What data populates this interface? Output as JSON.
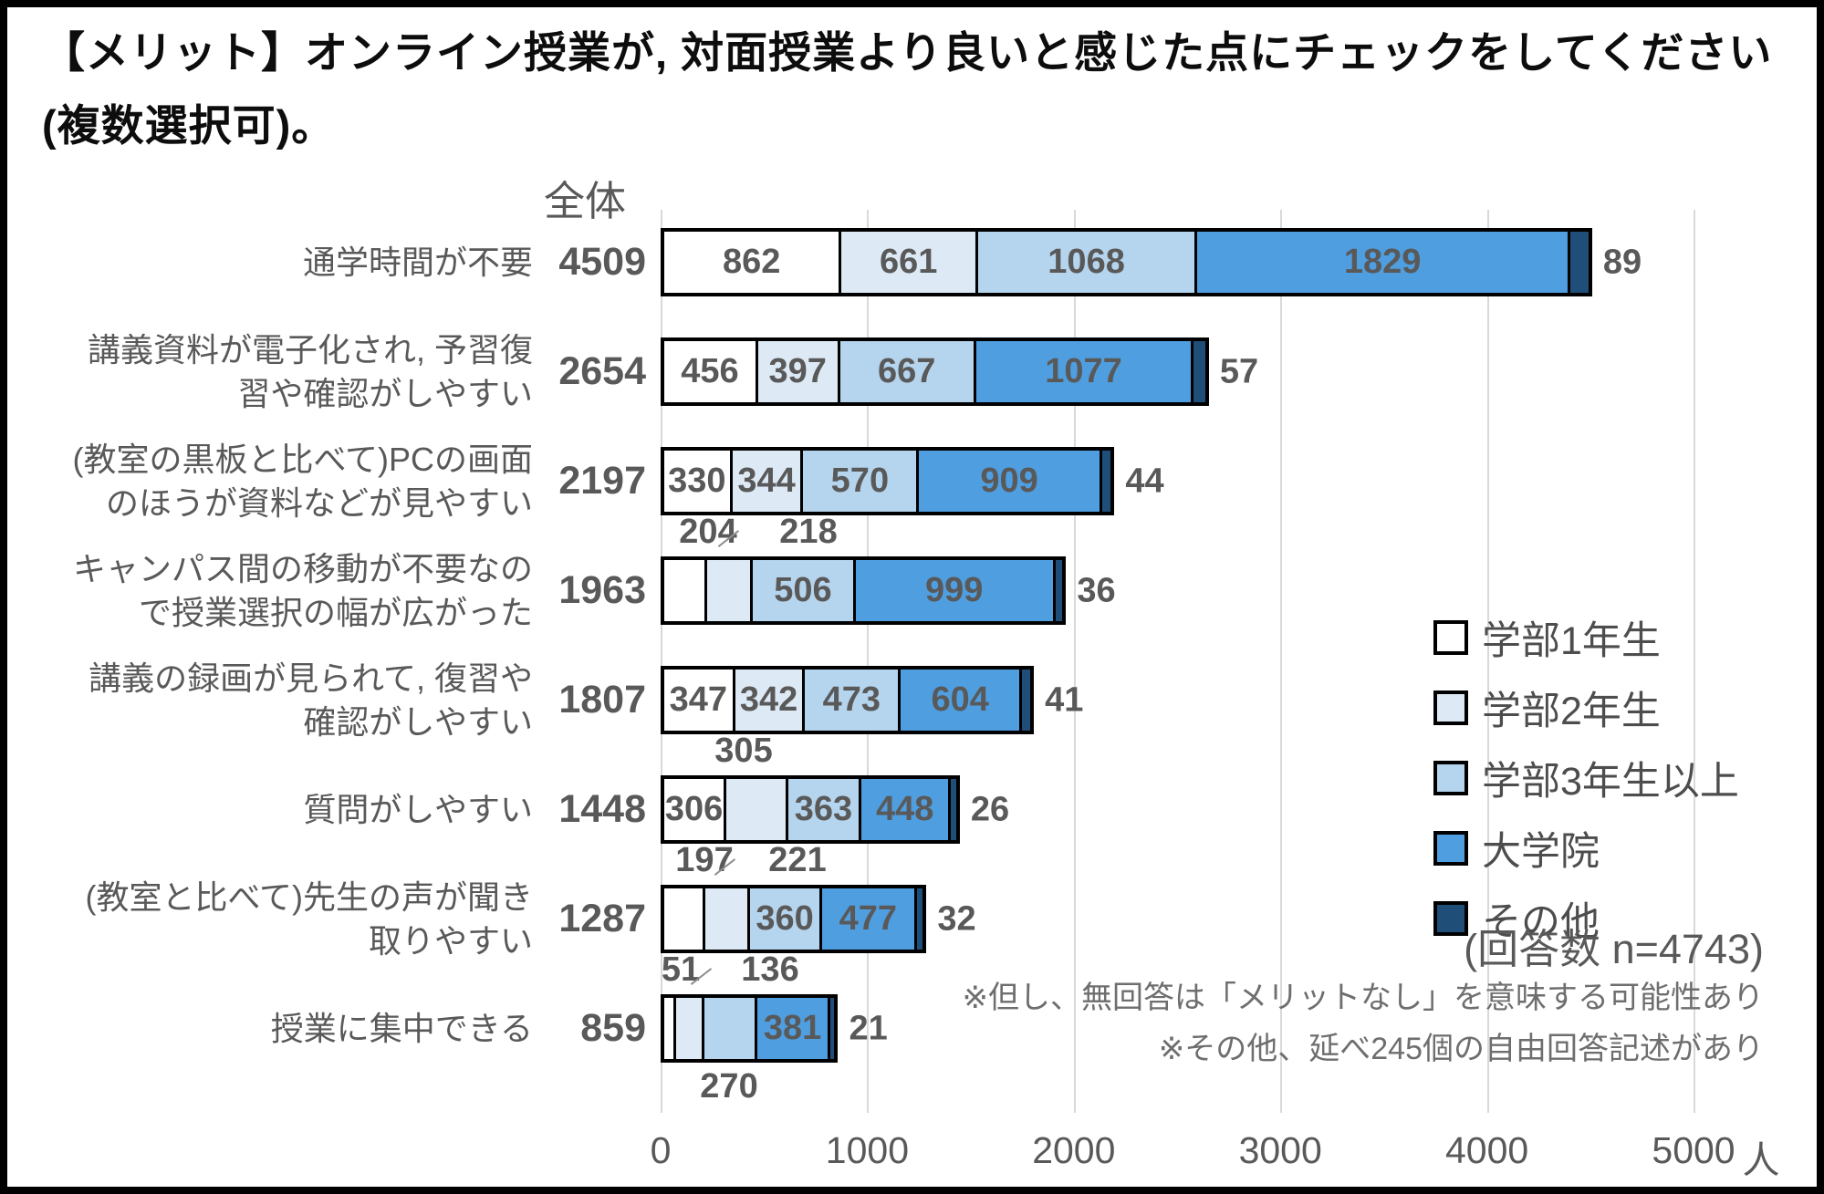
{
  "title": "【メリット】オンライン授業が, 対面授業より良いと感じた点にチェックをしてください (複数選択可)。",
  "chart_data": {
    "type": "bar",
    "stacked": true,
    "orientation": "horizontal",
    "grid": true,
    "legend_position": "right",
    "totals_header": "全体",
    "x_ticks": [
      "0",
      "1000",
      "2000",
      "3000",
      "4000",
      "5000"
    ],
    "x_unit": "人",
    "xlim": [
      0,
      5000
    ],
    "categories": [
      "通学時間が不要",
      "講義資料が電子化され, 予習復習や確認がしやすい",
      "(教室の黒板と比べて)PCの画面のほうが資料などが見やすい",
      "キャンパス間の移動が不要なので授業選択の幅が広がった",
      "講義の録画が見られて, 復習や確認がしやすい",
      "質問がしやすい",
      "(教室と比べて)先生の声が聞き取りやすい",
      "授業に集中できる"
    ],
    "totals": [
      4509,
      2654,
      2197,
      1963,
      1807,
      1448,
      1287,
      859
    ],
    "series": [
      {
        "name": "学部1年生",
        "color": "#FFFFFF",
        "values": [
          862,
          456,
          330,
          204,
          347,
          306,
          197,
          51
        ]
      },
      {
        "name": "学部2年生",
        "color": "#DDEAF6",
        "values": [
          661,
          397,
          344,
          218,
          342,
          305,
          221,
          136
        ]
      },
      {
        "name": "学部3年生以上",
        "color": "#B5D4ED",
        "values": [
          1068,
          667,
          570,
          506,
          473,
          363,
          360,
          270
        ]
      },
      {
        "name": "大学院",
        "color": "#4F9EE0",
        "values": [
          1829,
          1077,
          909,
          999,
          604,
          448,
          477,
          381
        ]
      },
      {
        "name": "その他",
        "color": "#1F4E79",
        "values": [
          89,
          57,
          44,
          36,
          41,
          26,
          32,
          21
        ]
      }
    ],
    "rows": [
      {
        "label_lines": [
          "通学時間が不要"
        ],
        "placements": [
          "inside",
          "inside",
          "inside",
          "inside",
          "right"
        ]
      },
      {
        "label_lines": [
          "講義資料が電子化され, 予習復",
          "習や確認がしやすい"
        ],
        "placements": [
          "inside",
          "inside",
          "inside",
          "inside",
          "right"
        ]
      },
      {
        "label_lines": [
          "(教室の黒板と比べて)PCの画面",
          "のほうが資料などが見やすい"
        ],
        "placements": [
          "inside",
          "inside",
          "inside",
          "inside",
          "right"
        ]
      },
      {
        "label_lines": [
          "キャンパス間の移動が不要なの",
          "で授業選択の幅が広がった"
        ],
        "placements": [
          {
            "pos": "above",
            "x": 52,
            "leader": true
          },
          {
            "pos": "above",
            "x": 162
          },
          "inside",
          "inside",
          "right"
        ]
      },
      {
        "label_lines": [
          "講義の録画が見られて, 復習や",
          "確認がしやすい"
        ],
        "placements": [
          "inside",
          "inside",
          "inside",
          "inside",
          "right"
        ]
      },
      {
        "label_lines": [
          "質問がしやすい"
        ],
        "placements": [
          "inside",
          {
            "pos": "above",
            "x": 91
          },
          "inside",
          "inside",
          "right"
        ]
      },
      {
        "label_lines": [
          "(教室と比べて)先生の声が聞き",
          "取りやすい"
        ],
        "placements": [
          {
            "pos": "above",
            "x": 48,
            "leader": true
          },
          {
            "pos": "above",
            "x": 150
          },
          "inside",
          "inside",
          "right"
        ]
      },
      {
        "label_lines": [
          "授業に集中できる"
        ],
        "placements": [
          {
            "pos": "above",
            "x": 22,
            "leader": true
          },
          {
            "pos": "above",
            "x": 120
          },
          {
            "pos": "below",
            "x": 75
          },
          "inside",
          "right"
        ]
      }
    ]
  },
  "annotations": {
    "n_note": "(回答数 n=4743)",
    "footnotes": [
      "※但し、無回答は「メリットなし」を意味する可能性あり",
      "※その他、延べ245個の自由回答記述があり"
    ]
  },
  "colors": {
    "bar_border": "#000000",
    "gridline": "#D9D9D9",
    "value_text": "#595959",
    "label_text": "#595959",
    "footnote_text": "#6E6E6E"
  }
}
